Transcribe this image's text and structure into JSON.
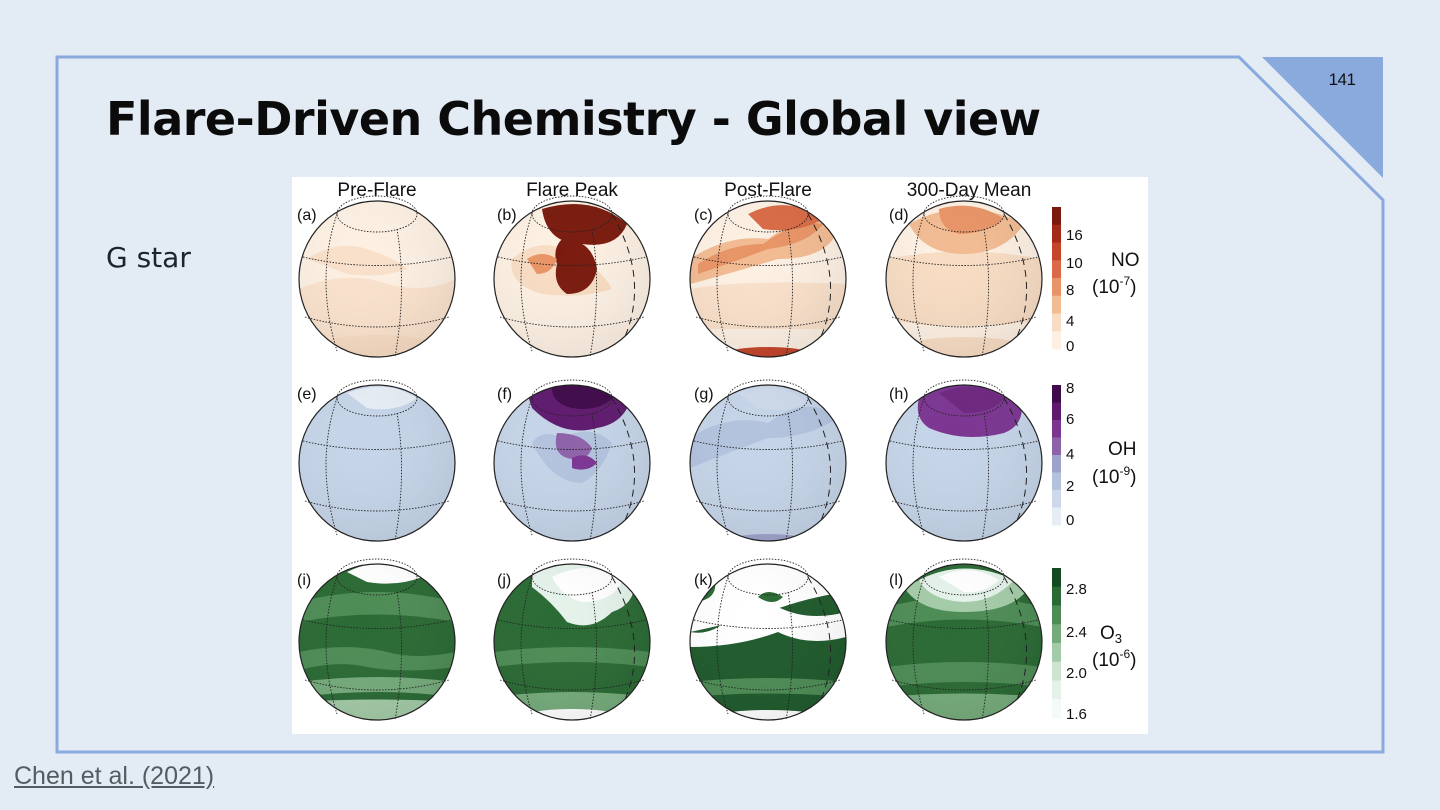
{
  "slide": {
    "title": "Flare-Driven Chemistry - Global view",
    "page_number": "141",
    "subtitle": "G star",
    "citation": "Chen et al. (2021)"
  },
  "figure": {
    "columns": [
      "Pre-Flare",
      "Flare Peak",
      "Post-Flare",
      "300-Day Mean"
    ],
    "panels": [
      "(a)",
      "(b)",
      "(c)",
      "(d)",
      "(e)",
      "(f)",
      "(g)",
      "(h)",
      "(i)",
      "(j)",
      "(k)",
      "(l)"
    ],
    "colorbars": [
      {
        "species": "NO",
        "unit": "(10",
        "exp": "-7",
        "close": ")",
        "ticks": [
          "16",
          "10",
          "8",
          "4",
          "0"
        ],
        "colors": [
          "#7a1a0e",
          "#a32a18",
          "#c4452a",
          "#d96a45",
          "#e89466",
          "#f2bb92",
          "#f8dcc3",
          "#fdf0e3"
        ]
      },
      {
        "species": "OH",
        "unit": "(10",
        "exp": "-9",
        "close": ")",
        "ticks": [
          "8",
          "6",
          "4",
          "2",
          "0"
        ],
        "colors": [
          "#3f0a4a",
          "#5f1a6e",
          "#7b3591",
          "#8e62a9",
          "#9ea3cb",
          "#b3c3de",
          "#cdd9ea",
          "#e6edf5"
        ]
      },
      {
        "species": "O",
        "species_sub": "3",
        "unit": "(10",
        "exp": "-6",
        "close": ")",
        "ticks": [
          "2.8",
          "2.4",
          "2.0",
          "1.6"
        ],
        "colors": [
          "#134a22",
          "#2a6a34",
          "#4d8c55",
          "#75ab7b",
          "#a4cba7",
          "#cde5d0",
          "#e4f2ea",
          "#f4faf8"
        ]
      }
    ]
  },
  "colors": {
    "frame": "#8aaade",
    "background": "#e3ebf4",
    "corner": "#8aaade"
  }
}
